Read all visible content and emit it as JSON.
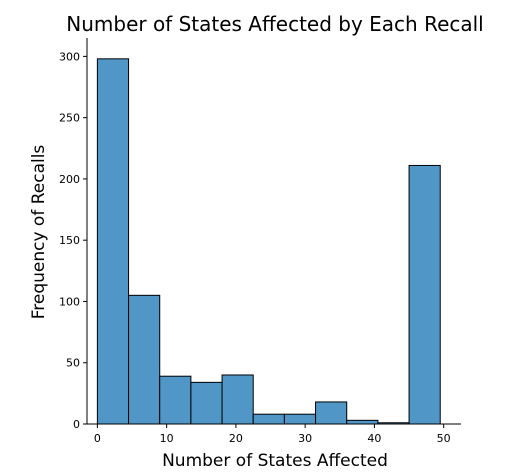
{
  "chart_data": {
    "type": "bar",
    "title": "Number of States Affected by Each Recall",
    "xlabel": "Number of States Affected",
    "ylabel": "Frequency of Recalls",
    "bar_color": "#5097c8",
    "edge_color": "#000000",
    "xlim": [
      -1.5,
      52.5
    ],
    "ylim": [
      0,
      315
    ],
    "xticks": [
      0,
      10,
      20,
      30,
      40,
      50
    ],
    "yticks": [
      0,
      50,
      100,
      150,
      200,
      250,
      300
    ],
    "bins": [
      {
        "x0": 0.0,
        "x1": 4.5,
        "value": 298
      },
      {
        "x0": 4.5,
        "x1": 9.0,
        "value": 105
      },
      {
        "x0": 9.0,
        "x1": 13.5,
        "value": 39
      },
      {
        "x0": 13.5,
        "x1": 18.0,
        "value": 34
      },
      {
        "x0": 18.0,
        "x1": 22.5,
        "value": 40
      },
      {
        "x0": 22.5,
        "x1": 27.0,
        "value": 8
      },
      {
        "x0": 27.0,
        "x1": 31.5,
        "value": 8
      },
      {
        "x0": 31.5,
        "x1": 36.0,
        "value": 18
      },
      {
        "x0": 36.0,
        "x1": 40.5,
        "value": 3
      },
      {
        "x0": 40.5,
        "x1": 45.0,
        "value": 1
      },
      {
        "x0": 45.0,
        "x1": 49.5,
        "value": 211
      }
    ],
    "grid": false,
    "legend": "none"
  }
}
